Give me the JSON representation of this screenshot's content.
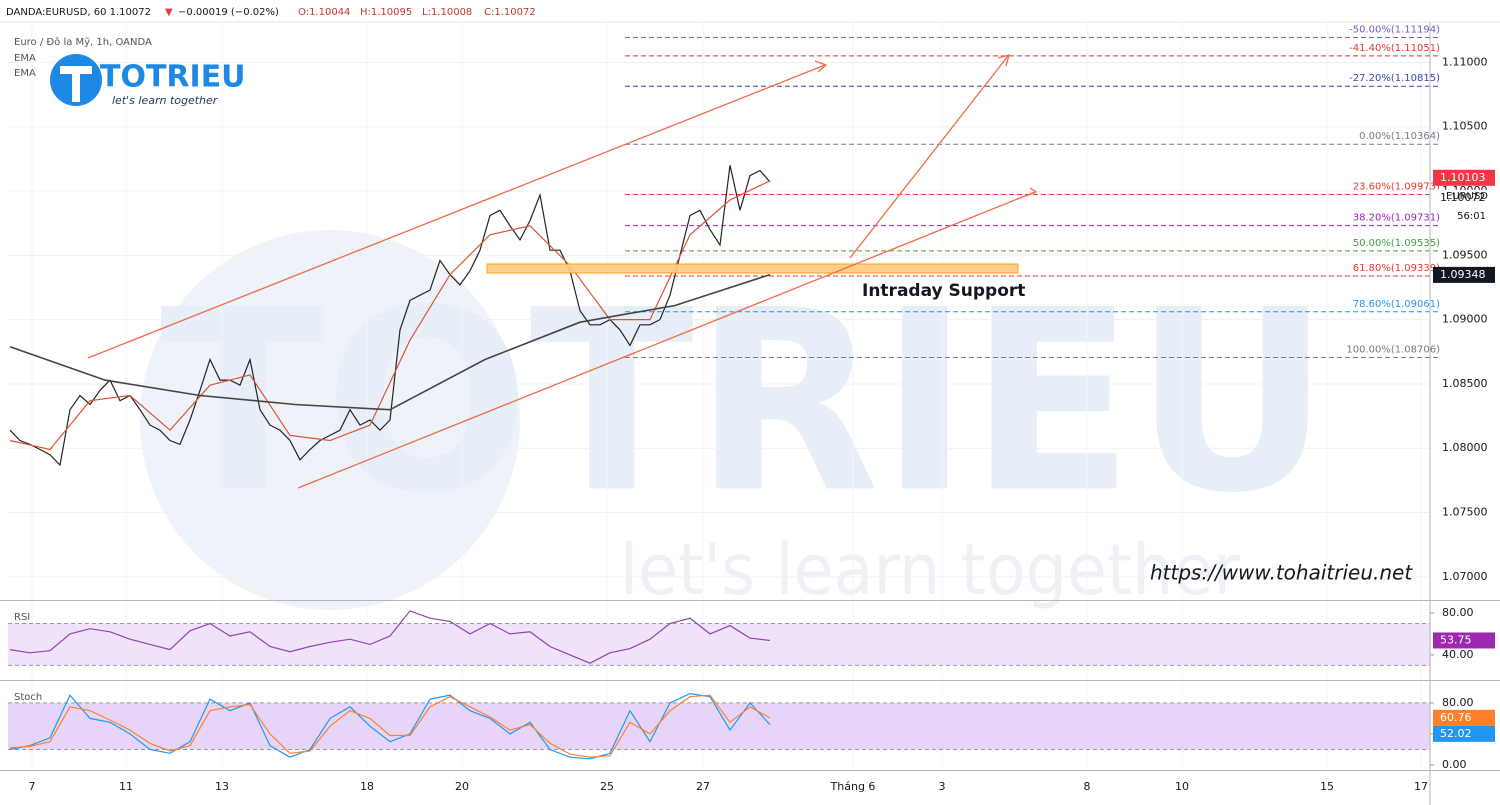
{
  "header": {
    "symbol": "DANDA:EURUSD, 60 1.10072",
    "arrow": "▼",
    "change": "−0.00019 (−0.02%)",
    "open": "O:1.10044",
    "high": "H:1.10095",
    "low": "L:1.10008",
    "close": "C:1.10072"
  },
  "logo": {
    "name": "TOTRIEU",
    "tagline": "let's learn together"
  },
  "watermark": {
    "name": "TOTRIEU",
    "tagline": "let's learn together"
  },
  "annotation": "Intraday Support",
  "url": "https://www.tohaitrieu.net",
  "date_labels": [
    "7",
    "11",
    "13",
    "18",
    "20",
    "25",
    "27",
    "Tháng 6",
    "3",
    "8",
    "10",
    "15",
    "17"
  ],
  "chart_data": [
    {
      "type": "line",
      "title": "Euro / Đô la Mỹ, 1h, OANDA",
      "ylim": [
        1.0682,
        1.1133
      ],
      "yticks": [
        {
          "value": 1.07,
          "label": "1.07000"
        },
        {
          "value": 1.075,
          "label": "1.07500"
        },
        {
          "value": 1.08,
          "label": "1.08000"
        },
        {
          "value": 1.085,
          "label": "1.08500"
        },
        {
          "value": 1.09,
          "label": "1.09000"
        },
        {
          "value": 1.095,
          "label": "1.09500"
        },
        {
          "value": 1.1,
          "label": "1.10000"
        },
        {
          "value": 1.105,
          "label": "1.10500"
        },
        {
          "value": 1.11,
          "label": "1.11000"
        }
      ],
      "grid": true,
      "series": [
        {
          "name": "EURUSD",
          "color": "#222222",
          "values": [
            1.0814,
            1.0806,
            1.0803,
            1.0799,
            1.0795,
            1.0787,
            1.083,
            1.0841,
            1.0834,
            1.0845,
            1.0853,
            1.0837,
            1.0841,
            1.083,
            1.0818,
            1.0814,
            1.0806,
            1.0803,
            1.0822,
            1.0845,
            1.0869,
            1.0853,
            1.0853,
            1.0849,
            1.0869,
            1.083,
            1.0818,
            1.0814,
            1.0806,
            1.0791,
            1.0799,
            1.0806,
            1.081,
            1.0814,
            1.083,
            1.0818,
            1.0822,
            1.0814,
            1.0822,
            1.0892,
            1.0915,
            1.0919,
            1.0923,
            1.0946,
            1.0935,
            1.0927,
            1.0938,
            1.0954,
            1.0981,
            1.0985,
            1.0973,
            1.0962,
            1.0977,
            1.0997,
            1.0954,
            1.0954,
            1.0938,
            1.0907,
            1.0896,
            1.0896,
            1.09,
            1.0892,
            1.088,
            1.0896,
            1.0896,
            1.09,
            1.0919,
            1.095,
            1.0981,
            1.0985,
            1.097,
            1.0958,
            1.102,
            1.0985,
            1.1012,
            1.1016,
            1.1007
          ]
        },
        {
          "name": "EMA",
          "color": "#e0533a",
          "values": [
            1.0806,
            1.0799,
            1.0837,
            1.0841,
            1.0814,
            1.0849,
            1.0857,
            1.081,
            1.0806,
            1.0818,
            1.0884,
            1.0935,
            1.0966,
            1.0973,
            1.0942,
            1.09,
            1.09,
            1.0966,
            1.0993,
            1.1008
          ]
        },
        {
          "name": "EMA",
          "color": "#444444",
          "values": [
            1.0879,
            1.0853,
            1.0841,
            1.0834,
            1.083,
            1.0869,
            1.0898,
            1.0911,
            1.0935
          ]
        }
      ],
      "fib_levels": [
        {
          "value": 1.11194,
          "label": "-50.00%(1.11194)",
          "color": "#7e57c2"
        },
        {
          "value": 1.11051,
          "label": "-41.40%(1.11051)",
          "color": "#e53935"
        },
        {
          "value": 1.10815,
          "label": "-27.20%(1.10815)",
          "color": "#3949ab"
        },
        {
          "value": 1.10364,
          "label": "0.00%(1.10364)",
          "color": "#787b86"
        },
        {
          "value": 1.09973,
          "label": "23.60%(1.09973)",
          "color": "#e53935"
        },
        {
          "value": 1.09731,
          "label": "38.20%(1.09731)",
          "color": "#9c27b0"
        },
        {
          "value": 1.09535,
          "label": "50.00%(1.09535)",
          "color": "#43a047"
        },
        {
          "value": 1.09339,
          "label": "61.80%(1.09339)",
          "color": "#e53935"
        },
        {
          "value": 1.09061,
          "label": "78.60%(1.09061)",
          "color": "#2196f3"
        },
        {
          "value": 1.08706,
          "label": "100.00%(1.08706)",
          "color": "#787b86"
        }
      ],
      "value_tags": [
        {
          "value": 1.10103,
          "label": "1.10103",
          "color": "#f23645"
        },
        {
          "value": 1.10072,
          "label": "1.10072",
          "color": "#ffffff"
        },
        {
          "value": 1.09348,
          "label": "1.09348",
          "color": "#131722"
        }
      ],
      "symbol_tag": "EURUSD",
      "countdown": "56:01"
    },
    {
      "type": "line",
      "title": "RSI",
      "ylim": [
        16,
        90.5
      ],
      "yticks": [
        {
          "value": 80,
          "label": "80.00"
        },
        {
          "value": 40,
          "label": "40.00"
        }
      ],
      "band": [
        30,
        70
      ],
      "band_color": "#e9d5f7",
      "series": [
        {
          "name": "RSI",
          "color": "#8e44ad",
          "values": [
            45,
            42,
            44,
            60,
            65,
            62,
            55,
            50,
            45,
            63,
            70,
            58,
            62,
            48,
            43,
            48,
            52,
            55,
            50,
            58,
            82,
            75,
            72,
            60,
            70,
            60,
            62,
            48,
            40,
            32,
            42,
            46,
            55,
            70,
            75,
            60,
            68,
            56,
            53.75
          ]
        }
      ],
      "value_tags": [
        {
          "value": 53.75,
          "label": "53.75",
          "color": "#9c27b0"
        }
      ]
    },
    {
      "type": "line",
      "title": "Stoch",
      "ylim": [
        -6.5,
        107
      ],
      "yticks": [
        {
          "value": 80,
          "label": "80.00"
        },
        {
          "value": 40,
          "label": "40.00"
        },
        {
          "value": 0,
          "label": "0.00"
        }
      ],
      "band": [
        20,
        80
      ],
      "band_color": "#dcc3f5",
      "series": [
        {
          "name": "%K",
          "color": "#2196f3",
          "values": [
            20,
            25,
            35,
            90,
            60,
            55,
            40,
            20,
            15,
            30,
            85,
            70,
            80,
            25,
            10,
            20,
            60,
            75,
            50,
            30,
            40,
            85,
            90,
            70,
            60,
            40,
            55,
            20,
            10,
            8,
            15,
            70,
            30,
            80,
            92,
            88,
            45,
            80,
            52.02
          ]
        },
        {
          "name": "%D",
          "color": "#ff7f2a",
          "values": [
            22,
            24,
            30,
            75,
            70,
            58,
            45,
            28,
            18,
            25,
            70,
            75,
            78,
            40,
            15,
            18,
            50,
            70,
            60,
            38,
            38,
            75,
            88,
            75,
            62,
            45,
            52,
            28,
            14,
            10,
            12,
            55,
            40,
            70,
            88,
            90,
            55,
            75,
            60.76
          ]
        }
      ],
      "value_tags": [
        {
          "value": 60.76,
          "label": "60.76",
          "color": "#ff7f2a"
        },
        {
          "value": 52.02,
          "label": "52.02",
          "color": "#2196f3"
        }
      ]
    }
  ]
}
